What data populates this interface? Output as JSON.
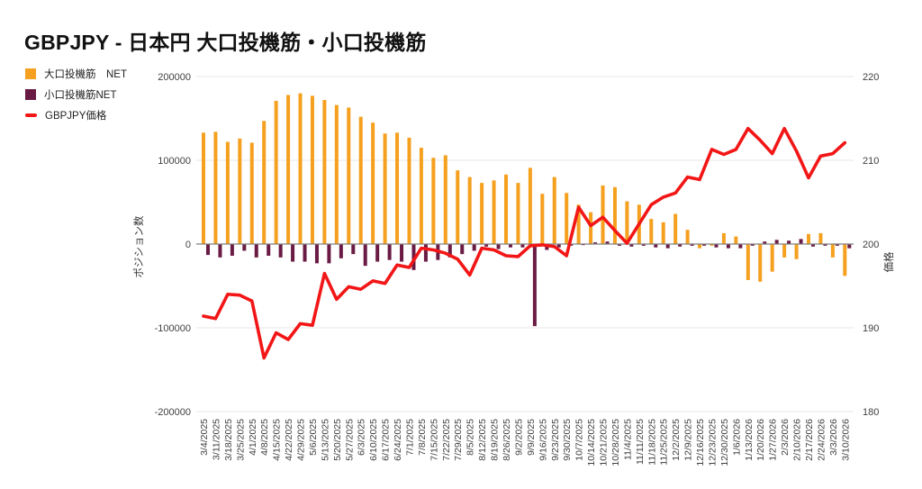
{
  "page": {
    "title": "GBPJPY - 日本円 大口投機筋・小口投機筋"
  },
  "legend": {
    "items": [
      {
        "label": "大口投機筋　NET",
        "color": "#F5A01E",
        "marker": "square"
      },
      {
        "label": "小口投機筋NET",
        "color": "#6A1B44",
        "marker": "square"
      },
      {
        "label": "GBPJPY価格",
        "color": "#F21616",
        "marker": "line"
      }
    ]
  },
  "chart_data": {
    "type": "combo-bar-line",
    "title": "GBPJPY - 日本円 大口投機筋・小口投機筋",
    "grid": true,
    "legend_position": "top-left",
    "categories": [
      "3/4/2025",
      "3/11/2025",
      "3/18/2025",
      "3/25/2025",
      "4/1/2025",
      "4/8/2025",
      "4/15/2025",
      "4/22/2025",
      "4/29/2025",
      "5/6/2025",
      "5/13/2025",
      "5/20/2025",
      "5/27/2025",
      "6/3/2025",
      "6/10/2025",
      "6/17/2025",
      "6/24/2025",
      "7/1/2025",
      "7/8/2025",
      "7/15/2025",
      "7/22/2025",
      "7/29/2025",
      "8/5/2025",
      "8/12/2025",
      "8/19/2025",
      "8/26/2025",
      "9/2/2025",
      "9/9/2025",
      "9/16/2025",
      "9/23/2025",
      "9/30/2025",
      "10/7/2025",
      "10/14/2025",
      "10/21/2025",
      "10/28/2025",
      "11/4/2025",
      "11/11/2025",
      "11/18/2025",
      "11/25/2025",
      "12/2/2025",
      "12/9/2025",
      "12/16/2025",
      "12/23/2025",
      "12/30/2025",
      "1/6/2026",
      "1/13/2026",
      "1/20/2026",
      "1/27/2026",
      "2/3/2026",
      "2/10/2026",
      "2/17/2026",
      "2/24/2026",
      "3/3/2026",
      "3/10/2026"
    ],
    "series": [
      {
        "name": "大口投機筋　NET",
        "type": "bar",
        "axis": "left",
        "color": "#F5A01E",
        "values": [
          133000,
          134000,
          122000,
          126000,
          121000,
          147000,
          171000,
          178000,
          180000,
          177000,
          172000,
          166000,
          163000,
          152000,
          145000,
          132000,
          133000,
          127000,
          115000,
          103000,
          106000,
          88000,
          80000,
          73000,
          76000,
          83000,
          73000,
          91000,
          60000,
          80000,
          61000,
          47000,
          38000,
          70000,
          68000,
          51000,
          47000,
          30000,
          26000,
          36000,
          17000,
          -5000,
          -2000,
          13000,
          9000,
          -43000,
          -45000,
          -33000,
          -16000,
          -18000,
          12000,
          13000,
          -16000,
          -38000
        ]
      },
      {
        "name": "小口投機筋NET",
        "type": "bar",
        "axis": "left",
        "color": "#6A1B44",
        "values": [
          -13000,
          -16000,
          -14000,
          -8000,
          -16000,
          -14000,
          -16000,
          -21000,
          -21000,
          -23000,
          -23000,
          -17000,
          -12000,
          -26000,
          -21000,
          -19000,
          -21000,
          -31000,
          -21000,
          -19000,
          -16000,
          -12000,
          -8000,
          -3000,
          -6000,
          -4000,
          -4000,
          -98000,
          -7000,
          -4000,
          -2000,
          -1000,
          2000,
          3000,
          -2000,
          -3000,
          -2000,
          -4000,
          -5000,
          -3000,
          -2000,
          -2000,
          -4000,
          -5000,
          -5000,
          -2000,
          3000,
          5000,
          4000,
          6000,
          -3000,
          -2000,
          -2000,
          -5000
        ]
      },
      {
        "name": "GBPJPY価格",
        "type": "line",
        "axis": "right",
        "color": "#F21616",
        "values": [
          191.4,
          191.1,
          194.0,
          193.9,
          193.2,
          186.4,
          189.4,
          188.6,
          190.5,
          190.3,
          196.5,
          193.4,
          194.9,
          194.6,
          195.6,
          195.3,
          197.5,
          197.2,
          199.5,
          199.3,
          198.9,
          198.2,
          196.3,
          199.5,
          199.3,
          198.6,
          198.5,
          199.8,
          199.9,
          199.7,
          198.6,
          204.4,
          202.2,
          203.2,
          201.6,
          200.1,
          202.4,
          204.7,
          205.6,
          206.1,
          208.0,
          207.7,
          211.3,
          210.7,
          211.3,
          213.8,
          212.4,
          210.8,
          213.8,
          211.1,
          207.9,
          210.5,
          210.8,
          212.1
        ]
      }
    ],
    "left_axis": {
      "title": "ポジション数",
      "min": -200000,
      "max": 200000,
      "tick_values": [
        200000,
        100000,
        0,
        -100000,
        -200000
      ],
      "tick_labels": [
        "200000",
        "100000",
        "0",
        "-100000",
        "-200000"
      ]
    },
    "right_axis": {
      "title": "価格",
      "min": 180,
      "max": 220,
      "tick_values": [
        220,
        210,
        200,
        190,
        180
      ],
      "tick_labels": [
        "220",
        "210",
        "200",
        "190",
        "180"
      ]
    }
  },
  "colors": {
    "background": "#ffffff",
    "grid": "#e7e7e7",
    "zero_line": "#808080",
    "tick_text": "#404040",
    "axis_title_text": "#333333"
  }
}
